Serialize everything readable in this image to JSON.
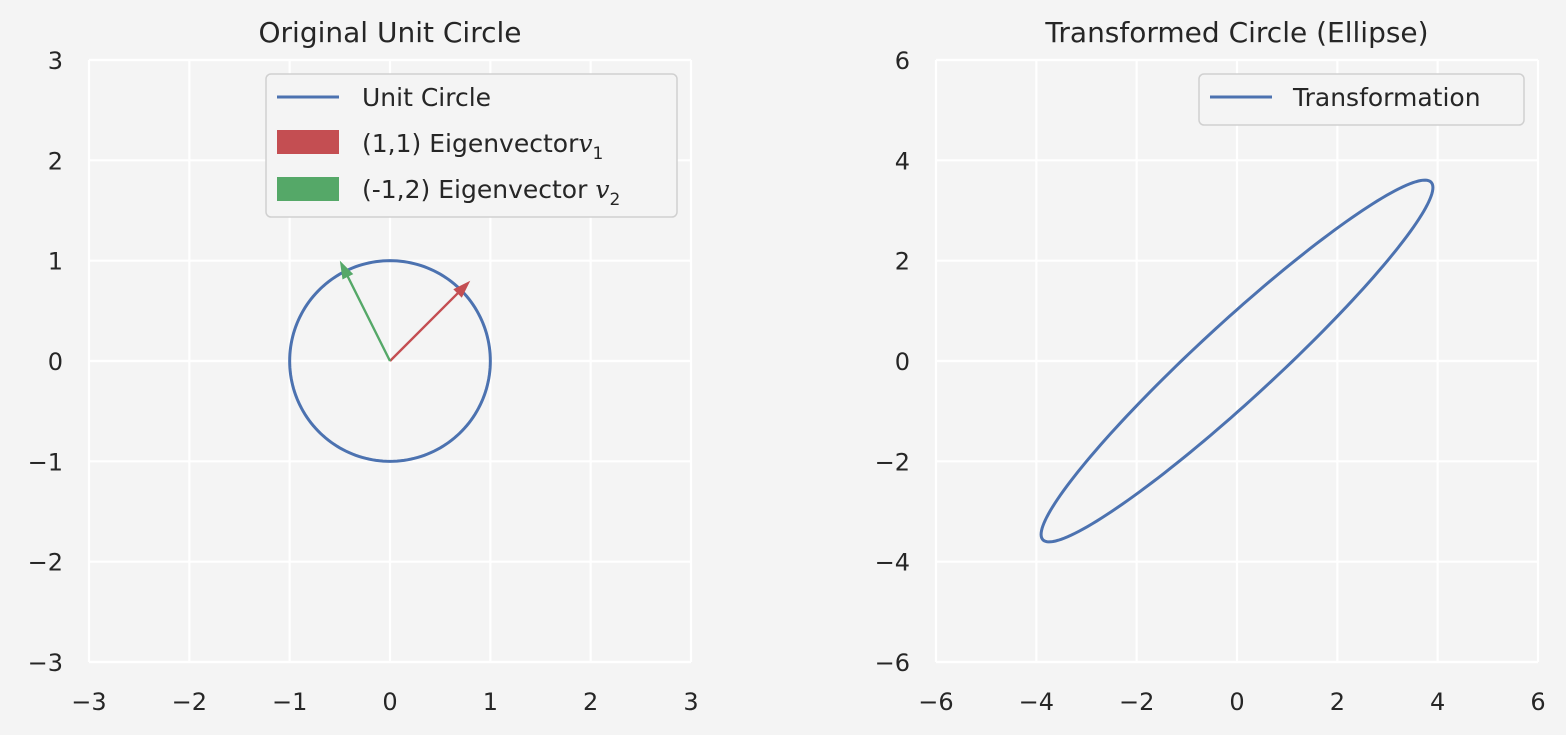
{
  "chart_data": [
    {
      "type": "line",
      "title": "Original Unit Circle",
      "xlim": [
        -3,
        3
      ],
      "ylim": [
        -3,
        3
      ],
      "xticks": [
        -3,
        -2,
        -1,
        0,
        1,
        2,
        3
      ],
      "yticks": [
        -3,
        -2,
        -1,
        0,
        1,
        2,
        3
      ],
      "xtick_labels": [
        "−3",
        "−2",
        "−1",
        "0",
        "1",
        "2",
        "3"
      ],
      "ytick_labels": [
        "−3",
        "−2",
        "−1",
        "0",
        "1",
        "2",
        "3"
      ],
      "grid": true,
      "legend_position": "upper-right",
      "series": [
        {
          "name": "Unit Circle",
          "kind": "circle",
          "center": [
            0,
            0
          ],
          "radius": 1,
          "color": "#4c72b0"
        }
      ],
      "vectors": [
        {
          "name": "(1,1) Eigenvector",
          "math": "v",
          "sub": "1",
          "space": false,
          "from": [
            0,
            0
          ],
          "to": [
            0.8,
            0.8
          ],
          "color": "#c44e52"
        },
        {
          "name": "(-1,2) Eigenvector",
          "math": "v",
          "sub": "2",
          "space": true,
          "from": [
            0,
            0
          ],
          "to": [
            -0.5,
            1.0
          ],
          "color": "#55a868"
        }
      ]
    },
    {
      "type": "line",
      "title": "Transformed Circle (Ellipse)",
      "xlim": [
        -6,
        6
      ],
      "ylim": [
        -6,
        6
      ],
      "xticks": [
        -6,
        -4,
        -2,
        0,
        2,
        4,
        6
      ],
      "yticks": [
        -6,
        -4,
        -2,
        0,
        2,
        4,
        6
      ],
      "xtick_labels": [
        "−6",
        "−4",
        "−2",
        "0",
        "2",
        "4",
        "6"
      ],
      "ytick_labels": [
        "−6",
        "−4",
        "−2",
        "0",
        "2",
        "4",
        "6"
      ],
      "grid": true,
      "legend_position": "upper-right",
      "series": [
        {
          "name": "Transformation",
          "kind": "ellipse",
          "matrix": [
            [
              3,
              2.5
            ],
            [
              2,
              3
            ]
          ],
          "color": "#4c72b0"
        }
      ]
    }
  ]
}
